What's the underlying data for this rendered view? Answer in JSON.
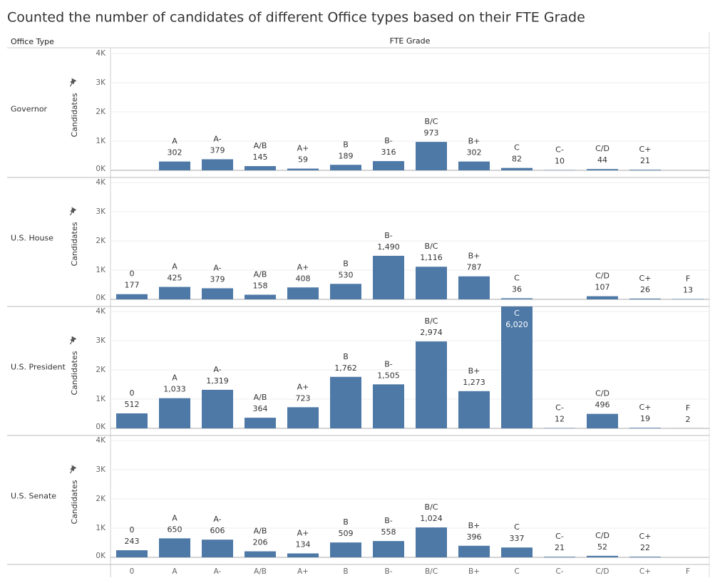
{
  "chart_data": {
    "type": "bar",
    "title": "Counted the number of candidates of different Office types based on their FTE Grade",
    "row_header": "Office Type",
    "column_header": "FTE Grade",
    "y_label": "Candidates",
    "color": "#4e79a7",
    "grid": true,
    "categories": [
      "0",
      "A",
      "A-",
      "A/B",
      "A+",
      "B",
      "B-",
      "B/C",
      "B+",
      "C",
      "C-",
      "C/D",
      "C+",
      "F"
    ],
    "ylim": [
      0,
      4000
    ],
    "yticks": [
      {
        "value": 0,
        "label": "0K"
      },
      {
        "value": 1000,
        "label": "1K"
      },
      {
        "value": 2000,
        "label": "2K"
      },
      {
        "value": 3000,
        "label": "3K"
      },
      {
        "value": 4000,
        "label": "4K"
      }
    ],
    "panels": [
      {
        "name": "Governor",
        "values": [
          null,
          302,
          379,
          145,
          59,
          189,
          316,
          973,
          302,
          82,
          10,
          44,
          21,
          null
        ],
        "value_labels": [
          null,
          "302",
          "379",
          "145",
          "59",
          "189",
          "316",
          "973",
          "302",
          "82",
          "10",
          "44",
          "21",
          null
        ]
      },
      {
        "name": "U.S. House",
        "values": [
          177,
          425,
          379,
          158,
          408,
          530,
          1490,
          1116,
          787,
          36,
          null,
          107,
          26,
          13
        ],
        "value_labels": [
          "177",
          "425",
          "379",
          "158",
          "408",
          "530",
          "1,490",
          "1,116",
          "787",
          "36",
          null,
          "107",
          "26",
          "13"
        ]
      },
      {
        "name": "U.S. President",
        "values": [
          512,
          1033,
          1319,
          364,
          723,
          1762,
          1505,
          2974,
          1273,
          6020,
          12,
          496,
          19,
          2
        ],
        "value_labels": [
          "512",
          "1,033",
          "1,319",
          "364",
          "723",
          "1,762",
          "1,505",
          "2,974",
          "1,273",
          "6,020",
          "12",
          "496",
          "19",
          "2"
        ]
      },
      {
        "name": "U.S. Senate",
        "values": [
          243,
          650,
          606,
          206,
          134,
          509,
          558,
          1024,
          396,
          337,
          21,
          52,
          22,
          null
        ],
        "value_labels": [
          "243",
          "650",
          "606",
          "206",
          "134",
          "509",
          "558",
          "1,024",
          "396",
          "337",
          "21",
          "52",
          "22",
          null
        ]
      }
    ]
  }
}
